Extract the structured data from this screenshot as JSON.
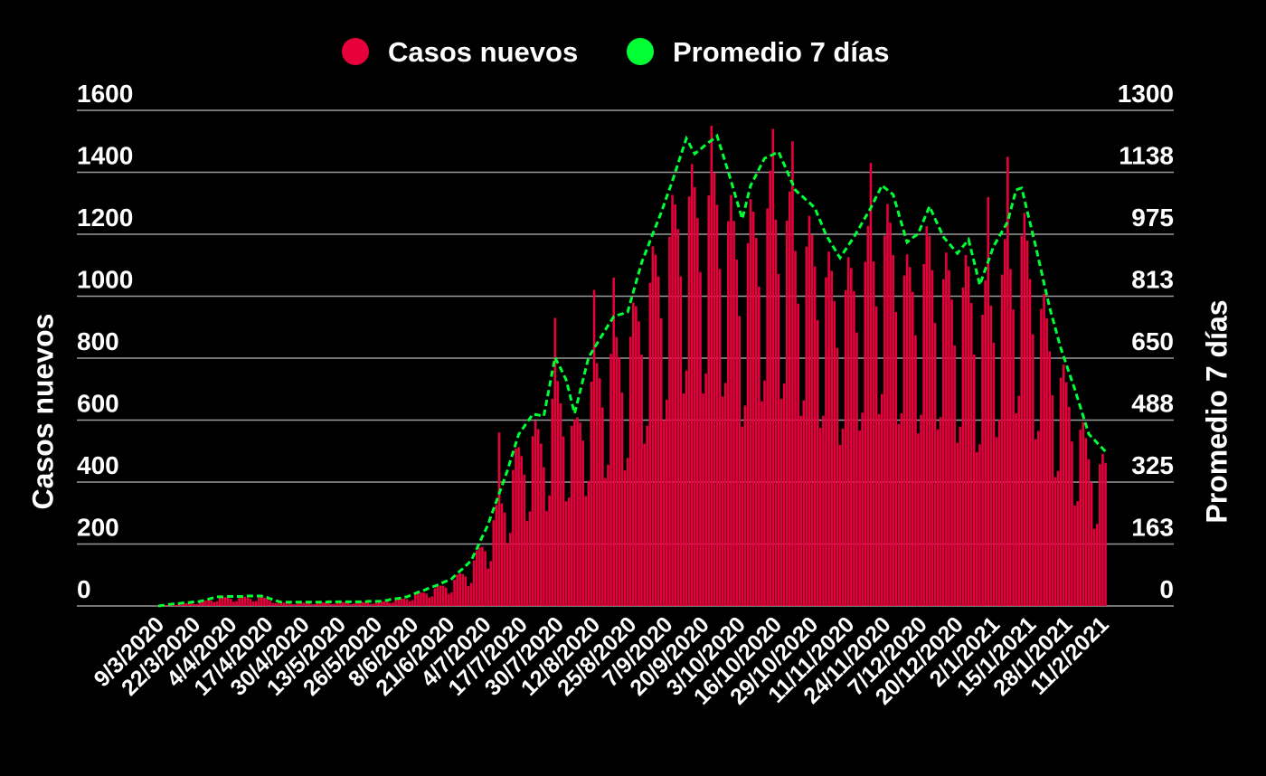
{
  "chart_data": {
    "type": "bar",
    "legend": "top",
    "grid": true,
    "ylabel": "Casos nuevos",
    "y2label": "Promedio 7 días",
    "ylim": [
      0,
      1600
    ],
    "yticks": [
      0,
      200,
      400,
      600,
      800,
      1000,
      1200,
      1400,
      1600
    ],
    "y2lim": [
      0,
      1300
    ],
    "y2ticks": [
      0,
      {
        "value": 162.5,
        "label": "163"
      },
      325,
      {
        "value": 487.5,
        "label": "488"
      },
      650,
      {
        "value": 812.5,
        "label": "813"
      },
      975,
      {
        "value": 1137.5,
        "label": "1138"
      },
      1300
    ],
    "categories": [
      "9/3/2020",
      null,
      null,
      null,
      null,
      null,
      null,
      null,
      null,
      null,
      null,
      null,
      null,
      "22/3/2020",
      null,
      null,
      null,
      null,
      null,
      null,
      null,
      null,
      null,
      null,
      null,
      null,
      "4/4/2020",
      null,
      null,
      null,
      null,
      null,
      null,
      null,
      null,
      null,
      null,
      null,
      null,
      "17/4/2020",
      null,
      null,
      null,
      null,
      null,
      null,
      null,
      null,
      null,
      null,
      null,
      null,
      "30/4/2020",
      null,
      null,
      null,
      null,
      null,
      null,
      null,
      null,
      null,
      null,
      null,
      null,
      "13/5/2020",
      null,
      null,
      null,
      null,
      null,
      null,
      null,
      null,
      null,
      null,
      null,
      null,
      "26/5/2020",
      null,
      null,
      null,
      null,
      null,
      null,
      null,
      null,
      null,
      null,
      null,
      null,
      "8/6/2020",
      null,
      null,
      null,
      null,
      null,
      null,
      null,
      null,
      null,
      null,
      null,
      null,
      "21/6/2020",
      null,
      null,
      null,
      null,
      null,
      null,
      null,
      null,
      null,
      null,
      null,
      null,
      "4/7/2020",
      null,
      null,
      null,
      null,
      null,
      null,
      null,
      null,
      null,
      null,
      null,
      null,
      "17/7/2020",
      null,
      null,
      null,
      null,
      null,
      null,
      null,
      null,
      null,
      null,
      null,
      null,
      "30/7/2020",
      null,
      null,
      null,
      null,
      null,
      null,
      null,
      null,
      null,
      null,
      null,
      null,
      "12/8/2020",
      null,
      null,
      null,
      null,
      null,
      null,
      null,
      null,
      null,
      null,
      null,
      null,
      "25/8/2020",
      null,
      null,
      null,
      null,
      null,
      null,
      null,
      null,
      null,
      null,
      null,
      null,
      "7/9/2020",
      null,
      null,
      null,
      null,
      null,
      null,
      null,
      null,
      null,
      null,
      null,
      null,
      "20/9/2020",
      null,
      null,
      null,
      null,
      null,
      null,
      null,
      null,
      null,
      null,
      null,
      null,
      "3/10/2020",
      null,
      null,
      null,
      null,
      null,
      null,
      null,
      null,
      null,
      null,
      null,
      null,
      "16/10/2020",
      null,
      null,
      null,
      null,
      null,
      null,
      null,
      null,
      null,
      null,
      null,
      null,
      "29/10/2020",
      null,
      null,
      null,
      null,
      null,
      null,
      null,
      null,
      null,
      null,
      null,
      null,
      "11/11/2020",
      null,
      null,
      null,
      null,
      null,
      null,
      null,
      null,
      null,
      null,
      null,
      null,
      "24/11/2020",
      null,
      null,
      null,
      null,
      null,
      null,
      null,
      null,
      null,
      null,
      null,
      null,
      "7/12/2020",
      null,
      null,
      null,
      null,
      null,
      null,
      null,
      null,
      null,
      null,
      null,
      null,
      "20/12/2020",
      null,
      null,
      null,
      null,
      null,
      null,
      null,
      null,
      null,
      null,
      null,
      null,
      "2/1/2021",
      null,
      null,
      null,
      null,
      null,
      null,
      null,
      null,
      null,
      null,
      null,
      null,
      "15/1/2021",
      null,
      null,
      null,
      null,
      null,
      null,
      null,
      null,
      null,
      null,
      null,
      null,
      "28/1/2021",
      null,
      null,
      null,
      null,
      null,
      null,
      null,
      null,
      null,
      null,
      null,
      null,
      "11/2/2021",
      null
    ],
    "series": [
      {
        "name": "Casos nuevos",
        "type": "bar",
        "color": "#e8003c",
        "values": [
          1,
          1,
          2,
          3,
          4,
          5,
          3,
          4,
          8,
          10,
          9,
          9,
          9,
          6,
          7,
          13,
          17,
          18,
          19,
          18,
          13,
          15,
          26,
          29,
          29,
          26,
          23,
          14,
          16,
          27,
          30,
          30,
          27,
          23,
          15,
          16,
          28,
          31,
          27,
          23,
          17,
          10,
          9,
          13,
          12,
          11,
          11,
          9,
          6,
          6,
          11,
          12,
          11,
          11,
          9,
          6,
          6,
          11,
          12,
          11,
          11,
          10,
          6,
          7,
          12,
          13,
          13,
          12,
          10,
          6,
          7,
          12,
          13,
          13,
          12,
          11,
          7,
          7,
          13,
          14,
          15,
          15,
          14,
          10,
          11,
          21,
          24,
          24,
          24,
          22,
          15,
          19,
          36,
          43,
          43,
          43,
          40,
          27,
          31,
          57,
          65,
          66,
          65,
          59,
          39,
          44,
          85,
          101,
          105,
          103,
          95,
          64,
          74,
          147,
          179,
          189,
          191,
          177,
          121,
          145,
          277,
          326,
          560,
          331,
          302,
          203,
          236,
          439,
          508,
          513,
          484,
          424,
          275,
          305,
          548,
          597,
          571,
          524,
          448,
          306,
          357,
          669,
          930,
          726,
          654,
          547,
          338,
          350,
          582,
          601,
          609,
          592,
          534,
          355,
          404,
          724,
          1020,
          784,
          735,
          641,
          413,
          456,
          814,
          1060,
          868,
          802,
          689,
          438,
          478,
          869,
          979,
          968,
          919,
          811,
          524,
          582,
          1043,
          1161,
          1134,
          1064,
          929,
          600,
          666,
          1192,
          1327,
          1296,
          1217,
          1064,
          686,
          760,
          1322,
          1427,
          1352,
          1252,
          1078,
          686,
          750,
          1325,
          1550,
          1399,
          1295,
          1088,
          676,
          720,
          1242,
          1327,
          1243,
          1118,
          936,
          579,
          647,
          1171,
          1313,
          1273,
          1188,
          1031,
          661,
          728,
          1283,
          1405,
          1540,
          1247,
          1072,
          669,
          718,
          1244,
          1338,
          1500,
          1146,
          976,
          614,
          664,
          1160,
          1259,
          1198,
          1096,
          923,
          575,
          614,
          1061,
          1144,
          1082,
          984,
          833,
          520,
          573,
          1019,
          1126,
          1091,
          1016,
          883,
          566,
          624,
          1111,
          1227,
          1430,
          1112,
          967,
          620,
          684,
          1196,
          1298,
          1237,
          1133,
          949,
          587,
          622,
          1067,
          1135,
          1094,
          1014,
          874,
          557,
          617,
          1104,
          1226,
          1195,
          1084,
          914,
          570,
          610,
          1055,
          1141,
          1084,
          989,
          841,
          527,
          579,
          1028,
          1133,
          1096,
          978,
          812,
          497,
          522,
          940,
          1051,
          1320,
          970,
          850,
          545,
          601,
          1070,
          1184,
          1450,
          1088,
          957,
          622,
          678,
          1195,
          1269,
          1180,
          1055,
          877,
          538,
          565,
          959,
          1008,
          929,
          822,
          680,
          416,
          436,
          737,
          779,
          722,
          643,
          531,
          324,
          338,
          569,
          593,
          542,
          474,
          399,
          249,
          265,
          458,
          491,
          462
        ]
      },
      {
        "name": "Promedio 7 días",
        "type": "line",
        "line_style": "dashed",
        "axis": "y2",
        "color": "#00ff33",
        "values": [
          0,
          1,
          2,
          3,
          4,
          5,
          6,
          6,
          7,
          8,
          8,
          9,
          10,
          11,
          11,
          12,
          14,
          16,
          18,
          20,
          22,
          24,
          24,
          24,
          25,
          25,
          25,
          25,
          25,
          25,
          25,
          26,
          26,
          26,
          26,
          26,
          26,
          26,
          24,
          22,
          19,
          17,
          14,
          12,
          10,
          10,
          10,
          10,
          10,
          10,
          10,
          10,
          10,
          10,
          10,
          10,
          10,
          10,
          10,
          10,
          10,
          11,
          11,
          11,
          11,
          11,
          11,
          11,
          11,
          11,
          11,
          11,
          11,
          11,
          11,
          12,
          12,
          12,
          12,
          12,
          13,
          14,
          15,
          17,
          18,
          19,
          20,
          21,
          23,
          24,
          27,
          30,
          33,
          36,
          38,
          41,
          44,
          47,
          50,
          52,
          55,
          58,
          62,
          65,
          68,
          71,
          78,
          85,
          92,
          98,
          105,
          112,
          119,
          135,
          150,
          166,
          182,
          197,
          213,
          234,
          254,
          274,
          295,
          315,
          336,
          356,
          380,
          403,
          427,
          450,
          461,
          471,
          482,
          492,
          503,
          502,
          501,
          499,
          498,
          537,
          575,
          614,
          652,
          637,
          623,
          608,
          593,
          564,
          534,
          505,
          534,
          564,
          593,
          623,
          652,
          664,
          676,
          688,
          700,
          712,
          724,
          736,
          747,
          759,
          761,
          764,
          766,
          769,
          771,
          797,
          823,
          849,
          875,
          901,
          920,
          938,
          957,
          976,
          995,
          1013,
          1032,
          1053,
          1074,
          1094,
          1115,
          1137,
          1159,
          1182,
          1204,
          1226,
          1213,
          1199,
          1186,
          1192,
          1198,
          1204,
          1210,
          1216,
          1221,
          1227,
          1233,
          1209,
          1186,
          1162,
          1139,
          1115,
          1090,
          1065,
          1040,
          1015,
          1044,
          1074,
          1103,
          1117,
          1131,
          1146,
          1160,
          1174,
          1177,
          1181,
          1184,
          1188,
          1191,
          1174,
          1158,
          1141,
          1124,
          1108,
          1091,
          1084,
          1078,
          1071,
          1064,
          1058,
          1051,
          1044,
          1026,
          1009,
          991,
          973,
          961,
          949,
          937,
          925,
          913,
          924,
          935,
          946,
          957,
          968,
          981,
          993,
          1006,
          1019,
          1031,
          1044,
          1059,
          1074,
          1088,
          1103,
          1097,
          1091,
          1085,
          1079,
          1054,
          1029,
          1004,
          979,
          954,
          960,
          966,
          971,
          977,
          995,
          1013,
          1030,
          1048,
          1032,
          1016,
          1000,
          984,
          968,
          959,
          951,
          942,
          934,
          925,
          934,
          943,
          952,
          961,
          931,
          902,
          872,
          842,
          862,
          883,
          903,
          924,
          944,
          957,
          970,
          982,
          995,
          1008,
          1036,
          1063,
          1091,
          1094,
          1096,
          1066,
          1035,
          1005,
          974,
          944,
          912,
          880,
          847,
          815,
          783,
          756,
          730,
          703,
          676,
          655,
          633,
          612,
          590,
          569,
          545,
          522,
          498,
          475,
          451,
          443,
          436,
          428,
          420,
          413,
          405
        ]
      }
    ]
  }
}
